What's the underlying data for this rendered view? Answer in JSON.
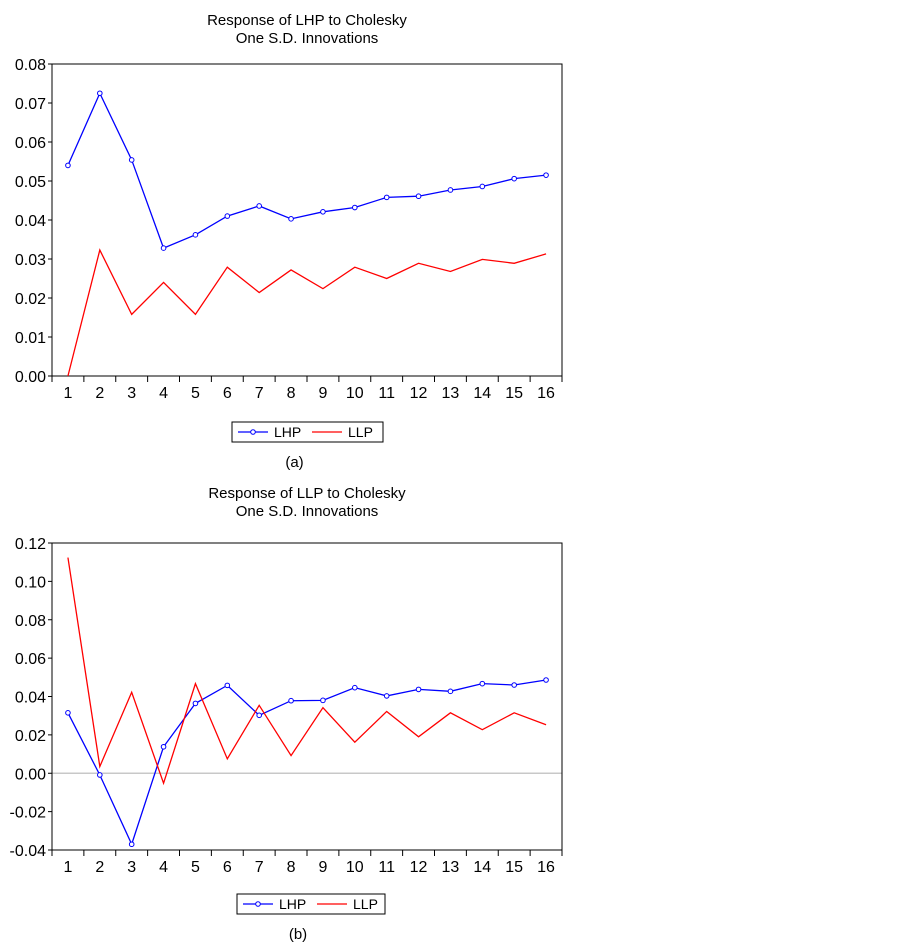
{
  "chart_data": [
    {
      "type": "line",
      "title": "Response of LHP to Cholesky",
      "subtitle": "One S.D. Innovations",
      "caption": "(a)",
      "categories": [
        "1",
        "2",
        "3",
        "4",
        "5",
        "6",
        "7",
        "8",
        "9",
        "10",
        "11",
        "12",
        "13",
        "14",
        "15",
        "16"
      ],
      "ylim": [
        0.0,
        0.08
      ],
      "yticks": [
        "0.00",
        "0.01",
        "0.02",
        "0.03",
        "0.04",
        "0.05",
        "0.06",
        "0.07",
        "0.08"
      ],
      "zero_line": false,
      "legend_position": "bottom",
      "series": [
        {
          "name": "LHP",
          "color": "#0000ff",
          "markers": true,
          "values": [
            0.054,
            0.0725,
            0.0554,
            0.0328,
            0.0362,
            0.041,
            0.0436,
            0.0403,
            0.0421,
            0.0432,
            0.0458,
            0.0461,
            0.0477,
            0.0486,
            0.0506,
            0.0515
          ]
        },
        {
          "name": "LLP",
          "color": "#ff0000",
          "markers": false,
          "values": [
            0.0,
            0.0323,
            0.0158,
            0.024,
            0.0158,
            0.0279,
            0.0214,
            0.0272,
            0.0224,
            0.0279,
            0.025,
            0.0289,
            0.0268,
            0.0299,
            0.0289,
            0.0313
          ]
        }
      ]
    },
    {
      "type": "line",
      "title": "Response of LLP to Cholesky",
      "subtitle": "One S.D. Innovations",
      "caption": "(b)",
      "categories": [
        "1",
        "2",
        "3",
        "4",
        "5",
        "6",
        "7",
        "8",
        "9",
        "10",
        "11",
        "12",
        "13",
        "14",
        "15",
        "16"
      ],
      "ylim": [
        -0.04,
        0.12
      ],
      "yticks": [
        "-0.04",
        "-0.02",
        "0.00",
        "0.02",
        "0.04",
        "0.06",
        "0.08",
        "0.10",
        "0.12"
      ],
      "zero_line": true,
      "legend_position": "bottom",
      "series": [
        {
          "name": "LHP",
          "color": "#0000ff",
          "markers": true,
          "values": [
            0.0315,
            -0.0009,
            -0.037,
            0.0138,
            0.0364,
            0.0458,
            0.0302,
            0.0378,
            0.038,
            0.0446,
            0.0403,
            0.0437,
            0.0427,
            0.0467,
            0.046,
            0.0486
          ]
        },
        {
          "name": "LLP",
          "color": "#ff0000",
          "markers": false,
          "values": [
            0.1124,
            0.0035,
            0.0422,
            -0.0052,
            0.0467,
            0.0075,
            0.0354,
            0.0092,
            0.0342,
            0.0162,
            0.0322,
            0.019,
            0.0315,
            0.0227,
            0.0315,
            0.0253
          ]
        }
      ]
    }
  ]
}
